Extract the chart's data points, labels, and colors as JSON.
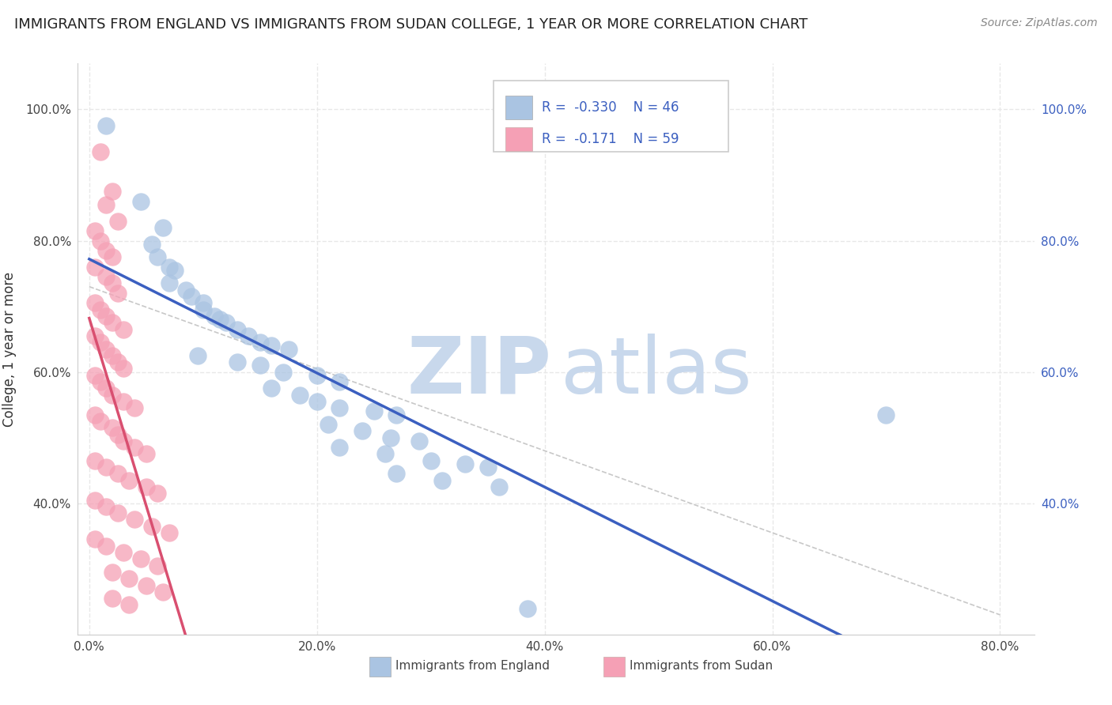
{
  "title": "IMMIGRANTS FROM ENGLAND VS IMMIGRANTS FROM SUDAN COLLEGE, 1 YEAR OR MORE CORRELATION CHART",
  "source": "Source: ZipAtlas.com",
  "legend_eng": "Immigrants from England",
  "legend_sud": "Immigrants from Sudan",
  "ylabel": "College, 1 year or more",
  "england_R": -0.33,
  "england_N": 46,
  "sudan_R": -0.171,
  "sudan_N": 59,
  "xmin": -0.01,
  "xmax": 0.83,
  "ymin": 0.2,
  "ymax": 1.07,
  "yticks": [
    0.4,
    0.6,
    0.8,
    1.0
  ],
  "ytick_labels": [
    "40.0%",
    "60.0%",
    "80.0%",
    "100.0%"
  ],
  "xticks": [
    0.0,
    0.2,
    0.4,
    0.6,
    0.8
  ],
  "xtick_labels": [
    "0.0%",
    "20.0%",
    "40.0%",
    "60.0%",
    "80.0%"
  ],
  "england_color": "#aac4e2",
  "sudan_color": "#f5a0b5",
  "england_line_color": "#3b5fc0",
  "sudan_line_color": "#d94f70",
  "england_scatter": [
    [
      0.015,
      0.975
    ],
    [
      0.045,
      0.86
    ],
    [
      0.065,
      0.82
    ],
    [
      0.055,
      0.795
    ],
    [
      0.06,
      0.775
    ],
    [
      0.07,
      0.76
    ],
    [
      0.075,
      0.755
    ],
    [
      0.07,
      0.735
    ],
    [
      0.085,
      0.725
    ],
    [
      0.09,
      0.715
    ],
    [
      0.1,
      0.705
    ],
    [
      0.1,
      0.695
    ],
    [
      0.11,
      0.685
    ],
    [
      0.115,
      0.68
    ],
    [
      0.12,
      0.675
    ],
    [
      0.13,
      0.665
    ],
    [
      0.14,
      0.655
    ],
    [
      0.15,
      0.645
    ],
    [
      0.16,
      0.64
    ],
    [
      0.175,
      0.635
    ],
    [
      0.095,
      0.625
    ],
    [
      0.13,
      0.615
    ],
    [
      0.15,
      0.61
    ],
    [
      0.17,
      0.6
    ],
    [
      0.2,
      0.595
    ],
    [
      0.22,
      0.585
    ],
    [
      0.16,
      0.575
    ],
    [
      0.185,
      0.565
    ],
    [
      0.2,
      0.555
    ],
    [
      0.22,
      0.545
    ],
    [
      0.25,
      0.54
    ],
    [
      0.27,
      0.535
    ],
    [
      0.21,
      0.52
    ],
    [
      0.24,
      0.51
    ],
    [
      0.265,
      0.5
    ],
    [
      0.29,
      0.495
    ],
    [
      0.22,
      0.485
    ],
    [
      0.26,
      0.475
    ],
    [
      0.3,
      0.465
    ],
    [
      0.33,
      0.46
    ],
    [
      0.35,
      0.455
    ],
    [
      0.27,
      0.445
    ],
    [
      0.31,
      0.435
    ],
    [
      0.36,
      0.425
    ],
    [
      0.7,
      0.535
    ],
    [
      0.385,
      0.24
    ]
  ],
  "sudan_scatter": [
    [
      0.01,
      0.935
    ],
    [
      0.02,
      0.875
    ],
    [
      0.015,
      0.855
    ],
    [
      0.025,
      0.83
    ],
    [
      0.005,
      0.815
    ],
    [
      0.01,
      0.8
    ],
    [
      0.015,
      0.785
    ],
    [
      0.02,
      0.775
    ],
    [
      0.005,
      0.76
    ],
    [
      0.015,
      0.745
    ],
    [
      0.02,
      0.735
    ],
    [
      0.025,
      0.72
    ],
    [
      0.005,
      0.705
    ],
    [
      0.01,
      0.695
    ],
    [
      0.015,
      0.685
    ],
    [
      0.02,
      0.675
    ],
    [
      0.03,
      0.665
    ],
    [
      0.005,
      0.655
    ],
    [
      0.01,
      0.645
    ],
    [
      0.015,
      0.635
    ],
    [
      0.02,
      0.625
    ],
    [
      0.025,
      0.615
    ],
    [
      0.03,
      0.605
    ],
    [
      0.005,
      0.595
    ],
    [
      0.01,
      0.585
    ],
    [
      0.015,
      0.575
    ],
    [
      0.02,
      0.565
    ],
    [
      0.03,
      0.555
    ],
    [
      0.04,
      0.545
    ],
    [
      0.005,
      0.535
    ],
    [
      0.01,
      0.525
    ],
    [
      0.02,
      0.515
    ],
    [
      0.025,
      0.505
    ],
    [
      0.03,
      0.495
    ],
    [
      0.04,
      0.485
    ],
    [
      0.05,
      0.475
    ],
    [
      0.005,
      0.465
    ],
    [
      0.015,
      0.455
    ],
    [
      0.025,
      0.445
    ],
    [
      0.035,
      0.435
    ],
    [
      0.05,
      0.425
    ],
    [
      0.06,
      0.415
    ],
    [
      0.005,
      0.405
    ],
    [
      0.015,
      0.395
    ],
    [
      0.025,
      0.385
    ],
    [
      0.04,
      0.375
    ],
    [
      0.055,
      0.365
    ],
    [
      0.07,
      0.355
    ],
    [
      0.005,
      0.345
    ],
    [
      0.015,
      0.335
    ],
    [
      0.03,
      0.325
    ],
    [
      0.045,
      0.315
    ],
    [
      0.06,
      0.305
    ],
    [
      0.02,
      0.295
    ],
    [
      0.035,
      0.285
    ],
    [
      0.05,
      0.275
    ],
    [
      0.065,
      0.265
    ],
    [
      0.02,
      0.255
    ],
    [
      0.035,
      0.245
    ]
  ],
  "watermark_zip_color": "#c8d8ec",
  "watermark_atlas_color": "#c8d8ec",
  "background_color": "#ffffff",
  "grid_color": "#e8e8e8"
}
